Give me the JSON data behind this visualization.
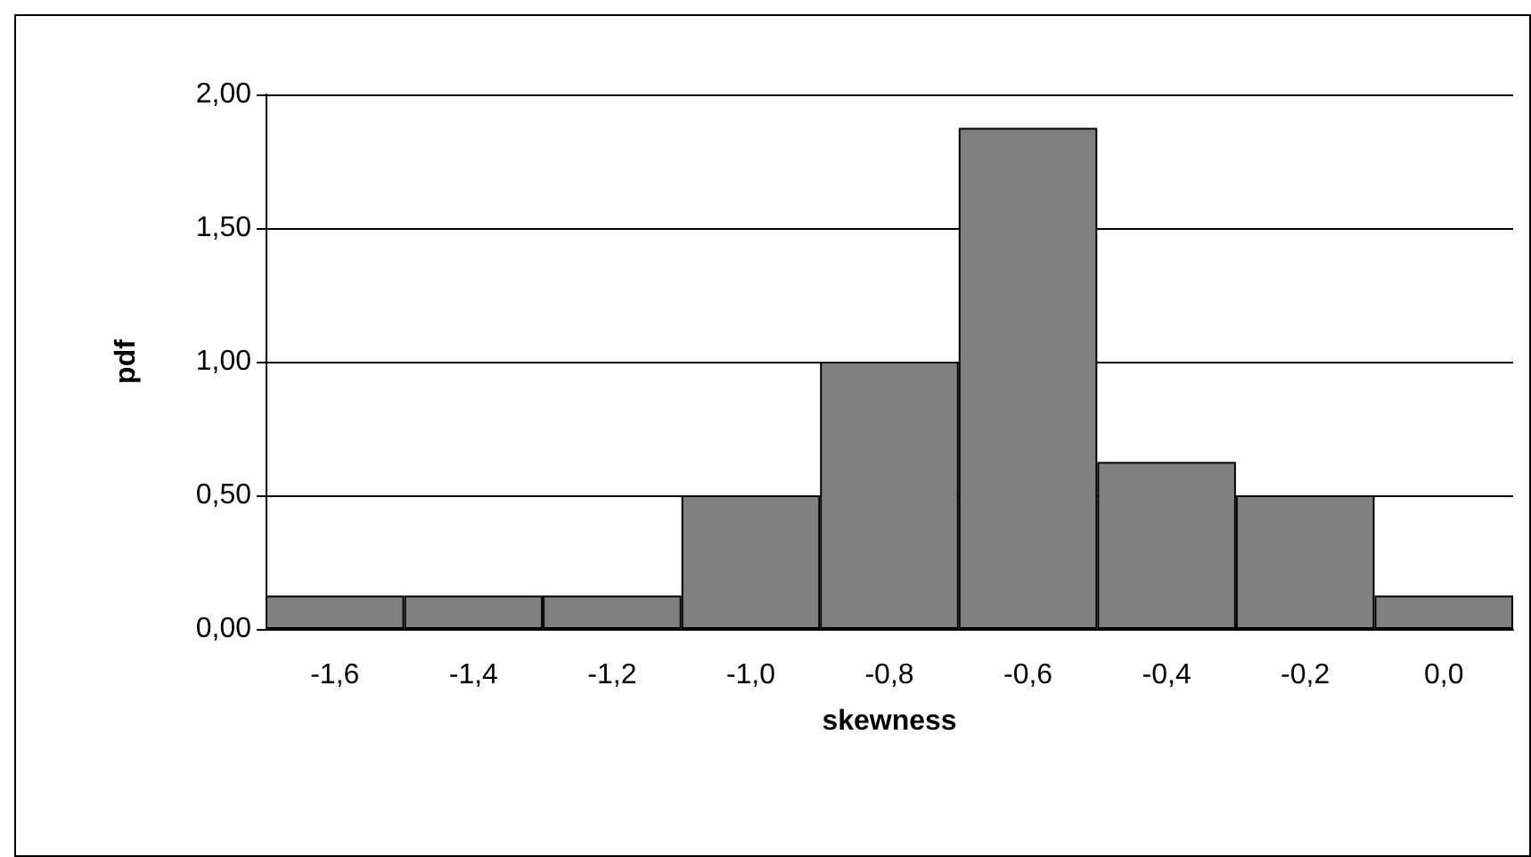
{
  "chart_data": {
    "type": "bar",
    "xlabel": "skewness",
    "ylabel": "pdf",
    "color": "#808080",
    "categories": [
      "-1,6",
      "-1,4",
      "-1,2",
      "-1,0",
      "-0,8",
      "-0,6",
      "-0,4",
      "-0,2",
      "0,0"
    ],
    "values": [
      0.125,
      0.125,
      0.125,
      0.5,
      1.0,
      1.875,
      0.625,
      0.5,
      0.125
    ],
    "ylim": [
      0,
      2
    ],
    "yticks": [
      {
        "value": 0,
        "label": "0,00"
      },
      {
        "value": 0.5,
        "label": "0,50"
      },
      {
        "value": 1,
        "label": "1,00"
      },
      {
        "value": 1.5,
        "label": "1,50"
      },
      {
        "value": 2,
        "label": "2,00"
      }
    ],
    "grid": "y"
  }
}
